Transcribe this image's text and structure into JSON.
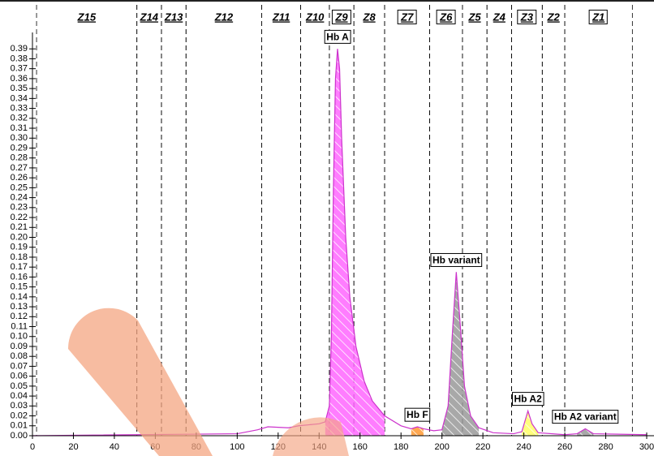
{
  "chart_data": {
    "type": "electropherogram",
    "x": [
      0,
      100,
      110,
      115,
      125,
      130,
      135,
      140,
      143,
      145,
      146,
      147,
      148,
      149,
      150,
      151,
      153,
      155,
      158,
      162,
      166,
      172,
      180,
      185,
      188,
      191,
      196,
      200,
      203,
      205,
      207,
      209,
      211,
      214,
      218,
      225,
      235,
      239,
      241,
      242,
      244,
      247,
      260,
      266,
      270,
      274,
      300
    ],
    "values": [
      0,
      0.002,
      0.006,
      0.009,
      0.008,
      0.01,
      0.011,
      0.012,
      0.014,
      0.03,
      0.1,
      0.25,
      0.36,
      0.39,
      0.37,
      0.3,
      0.2,
      0.14,
      0.09,
      0.055,
      0.035,
      0.02,
      0.01,
      0.007,
      0.009,
      0.007,
      0.005,
      0.006,
      0.03,
      0.1,
      0.165,
      0.11,
      0.05,
      0.02,
      0.008,
      0.003,
      0.002,
      0.004,
      0.018,
      0.025,
      0.012,
      0.003,
      0.001,
      0.002,
      0.007,
      0.002,
      0.001
    ],
    "color": "#cc33cc",
    "xlim": [
      0,
      300
    ],
    "ylim": [
      0,
      0.4
    ],
    "xticks": [
      0,
      20,
      40,
      60,
      80,
      100,
      120,
      140,
      160,
      180,
      200,
      220,
      240,
      260,
      280,
      300
    ],
    "yticks": [
      {
        "value": 0,
        "label": "0.00"
      },
      {
        "value": 0.01,
        "label": "0.01"
      },
      {
        "value": 0.02,
        "label": "0.02"
      },
      {
        "value": 0.03,
        "label": "0.03"
      },
      {
        "value": 0.04,
        "label": "0.04"
      },
      {
        "value": 0.05,
        "label": "0.05"
      },
      {
        "value": 0.06,
        "label": "0.06"
      },
      {
        "value": 0.07,
        "label": "0.07"
      },
      {
        "value": 0.08,
        "label": "0.08"
      },
      {
        "value": 0.09,
        "label": "0.09"
      },
      {
        "value": 0.1,
        "label": "0.10"
      },
      {
        "value": 0.11,
        "label": "0.11"
      },
      {
        "value": 0.12,
        "label": "0.12"
      },
      {
        "value": 0.13,
        "label": "0.13"
      },
      {
        "value": 0.14,
        "label": "0.14"
      },
      {
        "value": 0.15,
        "label": "0.15"
      },
      {
        "value": 0.16,
        "label": "0.16"
      },
      {
        "value": 0.17,
        "label": "0.17"
      },
      {
        "value": 0.18,
        "label": "0.18"
      },
      {
        "value": 0.19,
        "label": "0.19"
      },
      {
        "value": 0.2,
        "label": "0.20"
      },
      {
        "value": 0.21,
        "label": "0.21"
      },
      {
        "value": 0.22,
        "label": "0.22"
      },
      {
        "value": 0.23,
        "label": "0.23"
      },
      {
        "value": 0.24,
        "label": "0.24"
      },
      {
        "value": 0.25,
        "label": "0.25"
      },
      {
        "value": 0.26,
        "label": "0.26"
      },
      {
        "value": 0.27,
        "label": "0.27"
      },
      {
        "value": 0.28,
        "label": "0.28"
      },
      {
        "value": 0.29,
        "label": "0.29"
      },
      {
        "value": 0.3,
        "label": "0.30"
      },
      {
        "value": 0.31,
        "label": "0.31"
      },
      {
        "value": 0.32,
        "label": "0.32"
      },
      {
        "value": 0.33,
        "label": "0.33"
      },
      {
        "value": 0.34,
        "label": "0.34"
      },
      {
        "value": 0.35,
        "label": "0.35"
      },
      {
        "value": 0.36,
        "label": "0.36"
      },
      {
        "value": 0.37,
        "label": "0.37"
      },
      {
        "value": 0.38,
        "label": "0.38"
      },
      {
        "value": 0.39,
        "label": "0.39"
      }
    ],
    "zones": [
      {
        "label": "Z15",
        "from": 2,
        "to": 51,
        "boxed": false
      },
      {
        "label": "Z14",
        "from": 51,
        "to": 63,
        "boxed": false
      },
      {
        "label": "Z13",
        "from": 63,
        "to": 75,
        "boxed": false
      },
      {
        "label": "Z12",
        "from": 75,
        "to": 112,
        "boxed": false
      },
      {
        "label": "Z11",
        "from": 112,
        "to": 131,
        "boxed": false
      },
      {
        "label": "Z10",
        "from": 131,
        "to": 145,
        "boxed": false
      },
      {
        "label": "Z9",
        "from": 145,
        "to": 157,
        "boxed": true
      },
      {
        "label": "Z8",
        "from": 157,
        "to": 172,
        "boxed": false
      },
      {
        "label": "Z7",
        "from": 172,
        "to": 194,
        "boxed": true
      },
      {
        "label": "Z6",
        "from": 194,
        "to": 210,
        "boxed": true
      },
      {
        "label": "Z5",
        "from": 210,
        "to": 222,
        "boxed": false
      },
      {
        "label": "Z4",
        "from": 222,
        "to": 234,
        "boxed": false
      },
      {
        "label": "Z3",
        "from": 234,
        "to": 249,
        "boxed": true
      },
      {
        "label": "Z2",
        "from": 249,
        "to": 260,
        "boxed": false
      },
      {
        "label": "Z1",
        "from": 260,
        "to": 293,
        "boxed": true
      }
    ],
    "peaks": [
      {
        "label": "Hb A",
        "from": 143,
        "to": 172,
        "color": "#ff66ff"
      },
      {
        "label": "Hb F",
        "from": 185,
        "to": 191,
        "color": "#ff9933"
      },
      {
        "label": "Hb variant",
        "from": 200,
        "to": 218,
        "color": "#999999"
      },
      {
        "label": "Hb A2",
        "from": 239,
        "to": 247,
        "color": "#ffff66"
      },
      {
        "label": "Hb A2 variant",
        "from": 266,
        "to": 274,
        "color": "#999999"
      }
    ]
  }
}
